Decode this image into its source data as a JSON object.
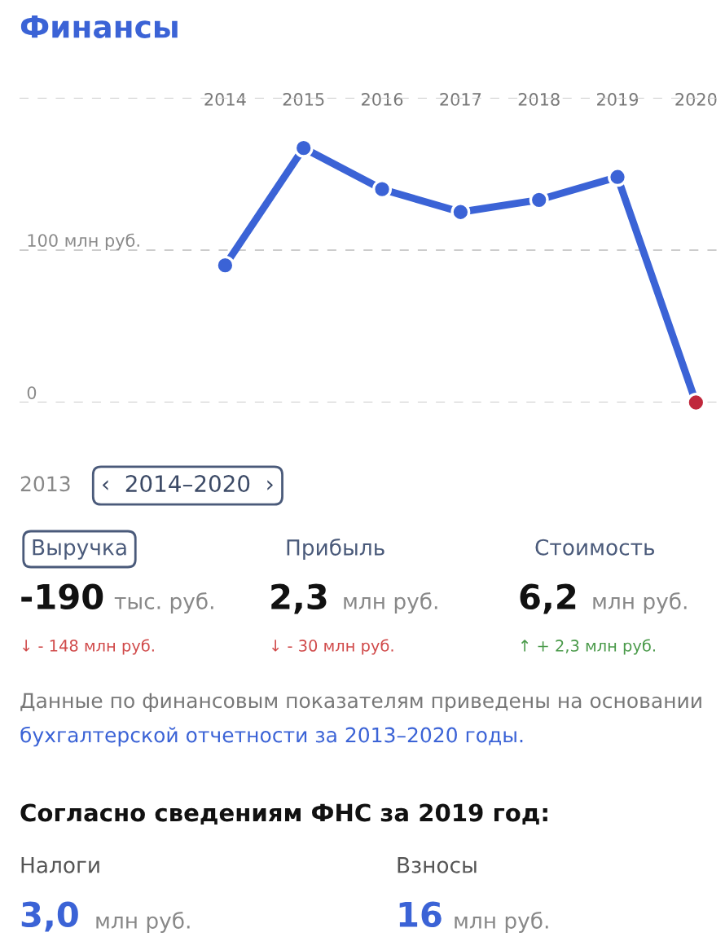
{
  "chart_data": {
    "type": "line",
    "title": "Финансы",
    "categories": [
      "2014",
      "2015",
      "2016",
      "2017",
      "2018",
      "2019",
      "2020"
    ],
    "series": [
      {
        "color": "#3b63d6",
        "colors": [
          "#3b63d6",
          "#3b63d6",
          "#3b63d6",
          "#3b63d6",
          "#3b63d6",
          "#3b63d6",
          "#c0283c"
        ],
        "values": [
          90,
          167,
          140,
          125,
          133,
          148,
          0
        ]
      }
    ],
    "ylim": [
      0,
      200
    ],
    "yticks": [
      {
        "value": 0,
        "label": "0"
      },
      {
        "value": 100,
        "label": "100 млн руб."
      },
      {
        "value": 200,
        "label": null
      }
    ],
    "grid": "y",
    "marker": "circle",
    "line_style": "solid",
    "annotations": [
      "2013",
      "‹  2014–2020  ›",
      "Выручка",
      "Прибыль",
      "Стоимость",
      "-190",
      "тыс. руб.",
      "2,3",
      "млн руб.",
      "6,2",
      "млн руб.",
      "↓ - 148 млн руб.",
      "↓ - 30 млн руб.",
      "↑ + 2,3 млн руб.",
      "Данные по финансовым показателям приведены на основании",
      "бухгалтерской отчетности за 2013–2020 годы.",
      "Согласно сведениям ФНС за 2019 год:",
      "Налоги",
      "Взносы",
      "3,0",
      "млн руб.",
      "16",
      "млн руб."
    ]
  }
}
